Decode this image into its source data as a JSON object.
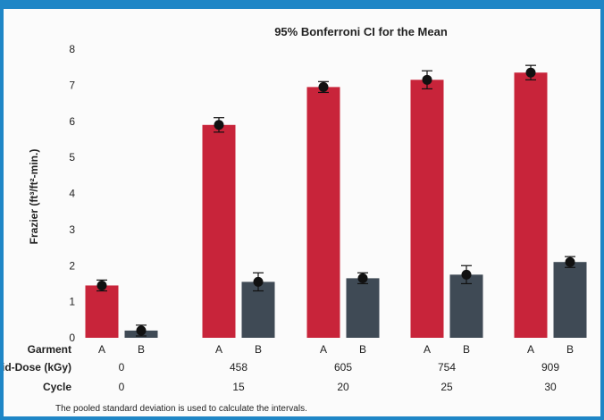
{
  "chart_data": {
    "type": "bar",
    "title": "95% Bonferroni CI for the Mean",
    "ylabel": "Frazier (ft³/ft²-min.)",
    "ylim": [
      0,
      8
    ],
    "yticks": [
      0,
      1,
      2,
      3,
      4,
      5,
      6,
      7,
      8
    ],
    "grid": false,
    "row_labels": {
      "garment": "Garment",
      "dose": "Mid-Dose (kGy)",
      "cycle": "Cycle"
    },
    "groups": [
      {
        "dose": "0",
        "cycle": "0"
      },
      {
        "dose": "458",
        "cycle": "15"
      },
      {
        "dose": "605",
        "cycle": "20"
      },
      {
        "dose": "754",
        "cycle": "25"
      },
      {
        "dose": "909",
        "cycle": "30"
      }
    ],
    "series": [
      {
        "name": "A",
        "color": "#c8243a",
        "values": [
          1.45,
          5.9,
          6.95,
          7.15,
          7.35
        ],
        "err": [
          0.15,
          0.2,
          0.15,
          0.25,
          0.2
        ]
      },
      {
        "name": "B",
        "color": "#3f4a55",
        "values": [
          0.2,
          1.55,
          1.65,
          1.75,
          2.1
        ],
        "err": [
          0.15,
          0.25,
          0.15,
          0.25,
          0.15
        ]
      }
    ],
    "footnote": "The pooled standard deviation is used to calculate the intervals."
  }
}
